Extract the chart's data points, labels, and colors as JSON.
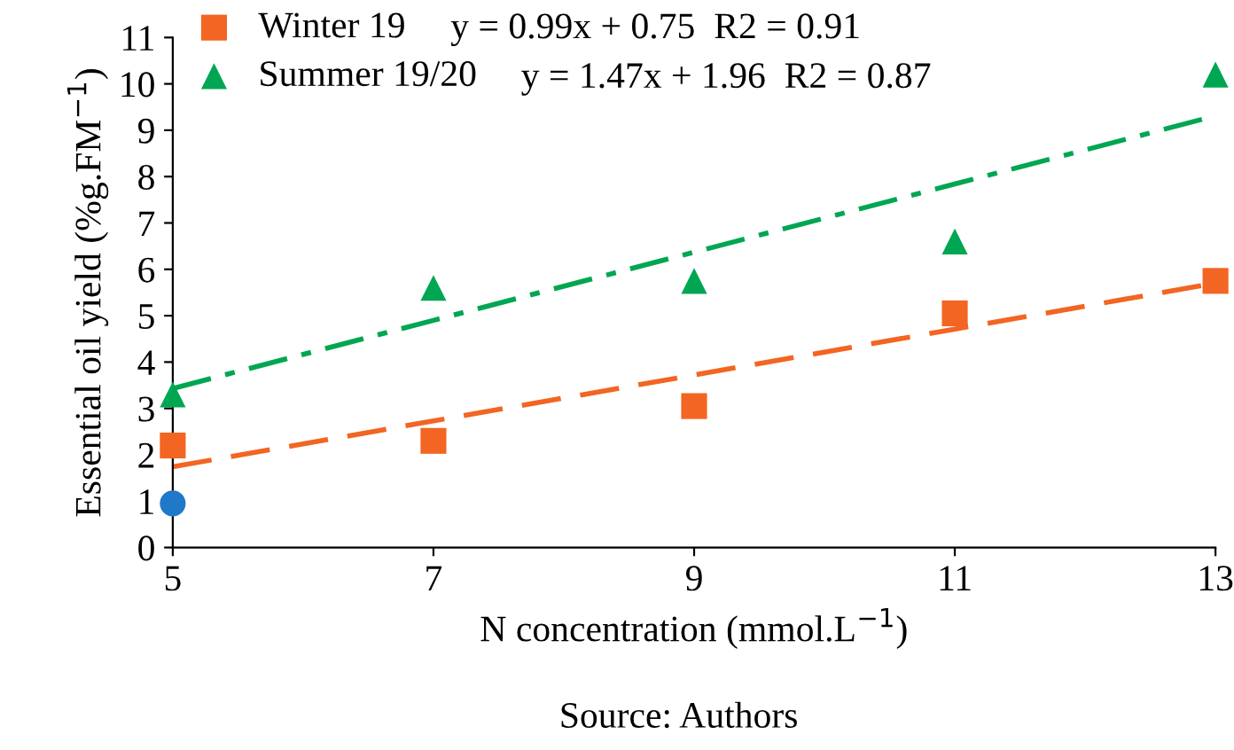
{
  "chart_data": {
    "type": "scatter",
    "xlabel": "N concentration (mmol.L$^{−1}$)",
    "ylabel": "Essential oil yield (%g.FM$^{−1}$)",
    "x": [
      5,
      7,
      9,
      11,
      13
    ],
    "xlim": [
      5,
      13
    ],
    "xticks": [
      5,
      7,
      9,
      11,
      13
    ],
    "ylim": [
      0,
      11
    ],
    "yticks": [
      0,
      1,
      2,
      3,
      4,
      5,
      6,
      7,
      8,
      9,
      10,
      11
    ],
    "grid": false,
    "legend": "top left",
    "series": [
      {
        "name": "Winter 19",
        "color": "#f26522",
        "marker": "square",
        "values": [
          2.2,
          2.3,
          3.05,
          5.05,
          5.75
        ]
      },
      {
        "name": "Summer 19/20",
        "color": "#00a651",
        "marker": "triangle",
        "values": [
          3.3,
          5.6,
          5.75,
          6.6,
          10.2
        ]
      },
      {
        "color": "#1f78c8",
        "marker": "circle",
        "values": [
          0.95,
          null,
          null,
          null,
          null
        ]
      },
      {
        "type": "line",
        "color": "#f26522",
        "line_style": "dashed",
        "marker": "none",
        "values": [
          1.74,
          2.73,
          3.72,
          4.71,
          5.7
        ]
      },
      {
        "type": "line",
        "color": "#00a651",
        "line_style": "dashdot",
        "marker": "none",
        "values": [
          3.43,
          4.9,
          6.37,
          7.84,
          9.31
        ]
      }
    ],
    "annotations": [
      "y = 0.99x + 0.75  R2 = 0.91",
      "y = 1.47x + 1.96  R2 = 0.87",
      "Source: Authors"
    ]
  }
}
